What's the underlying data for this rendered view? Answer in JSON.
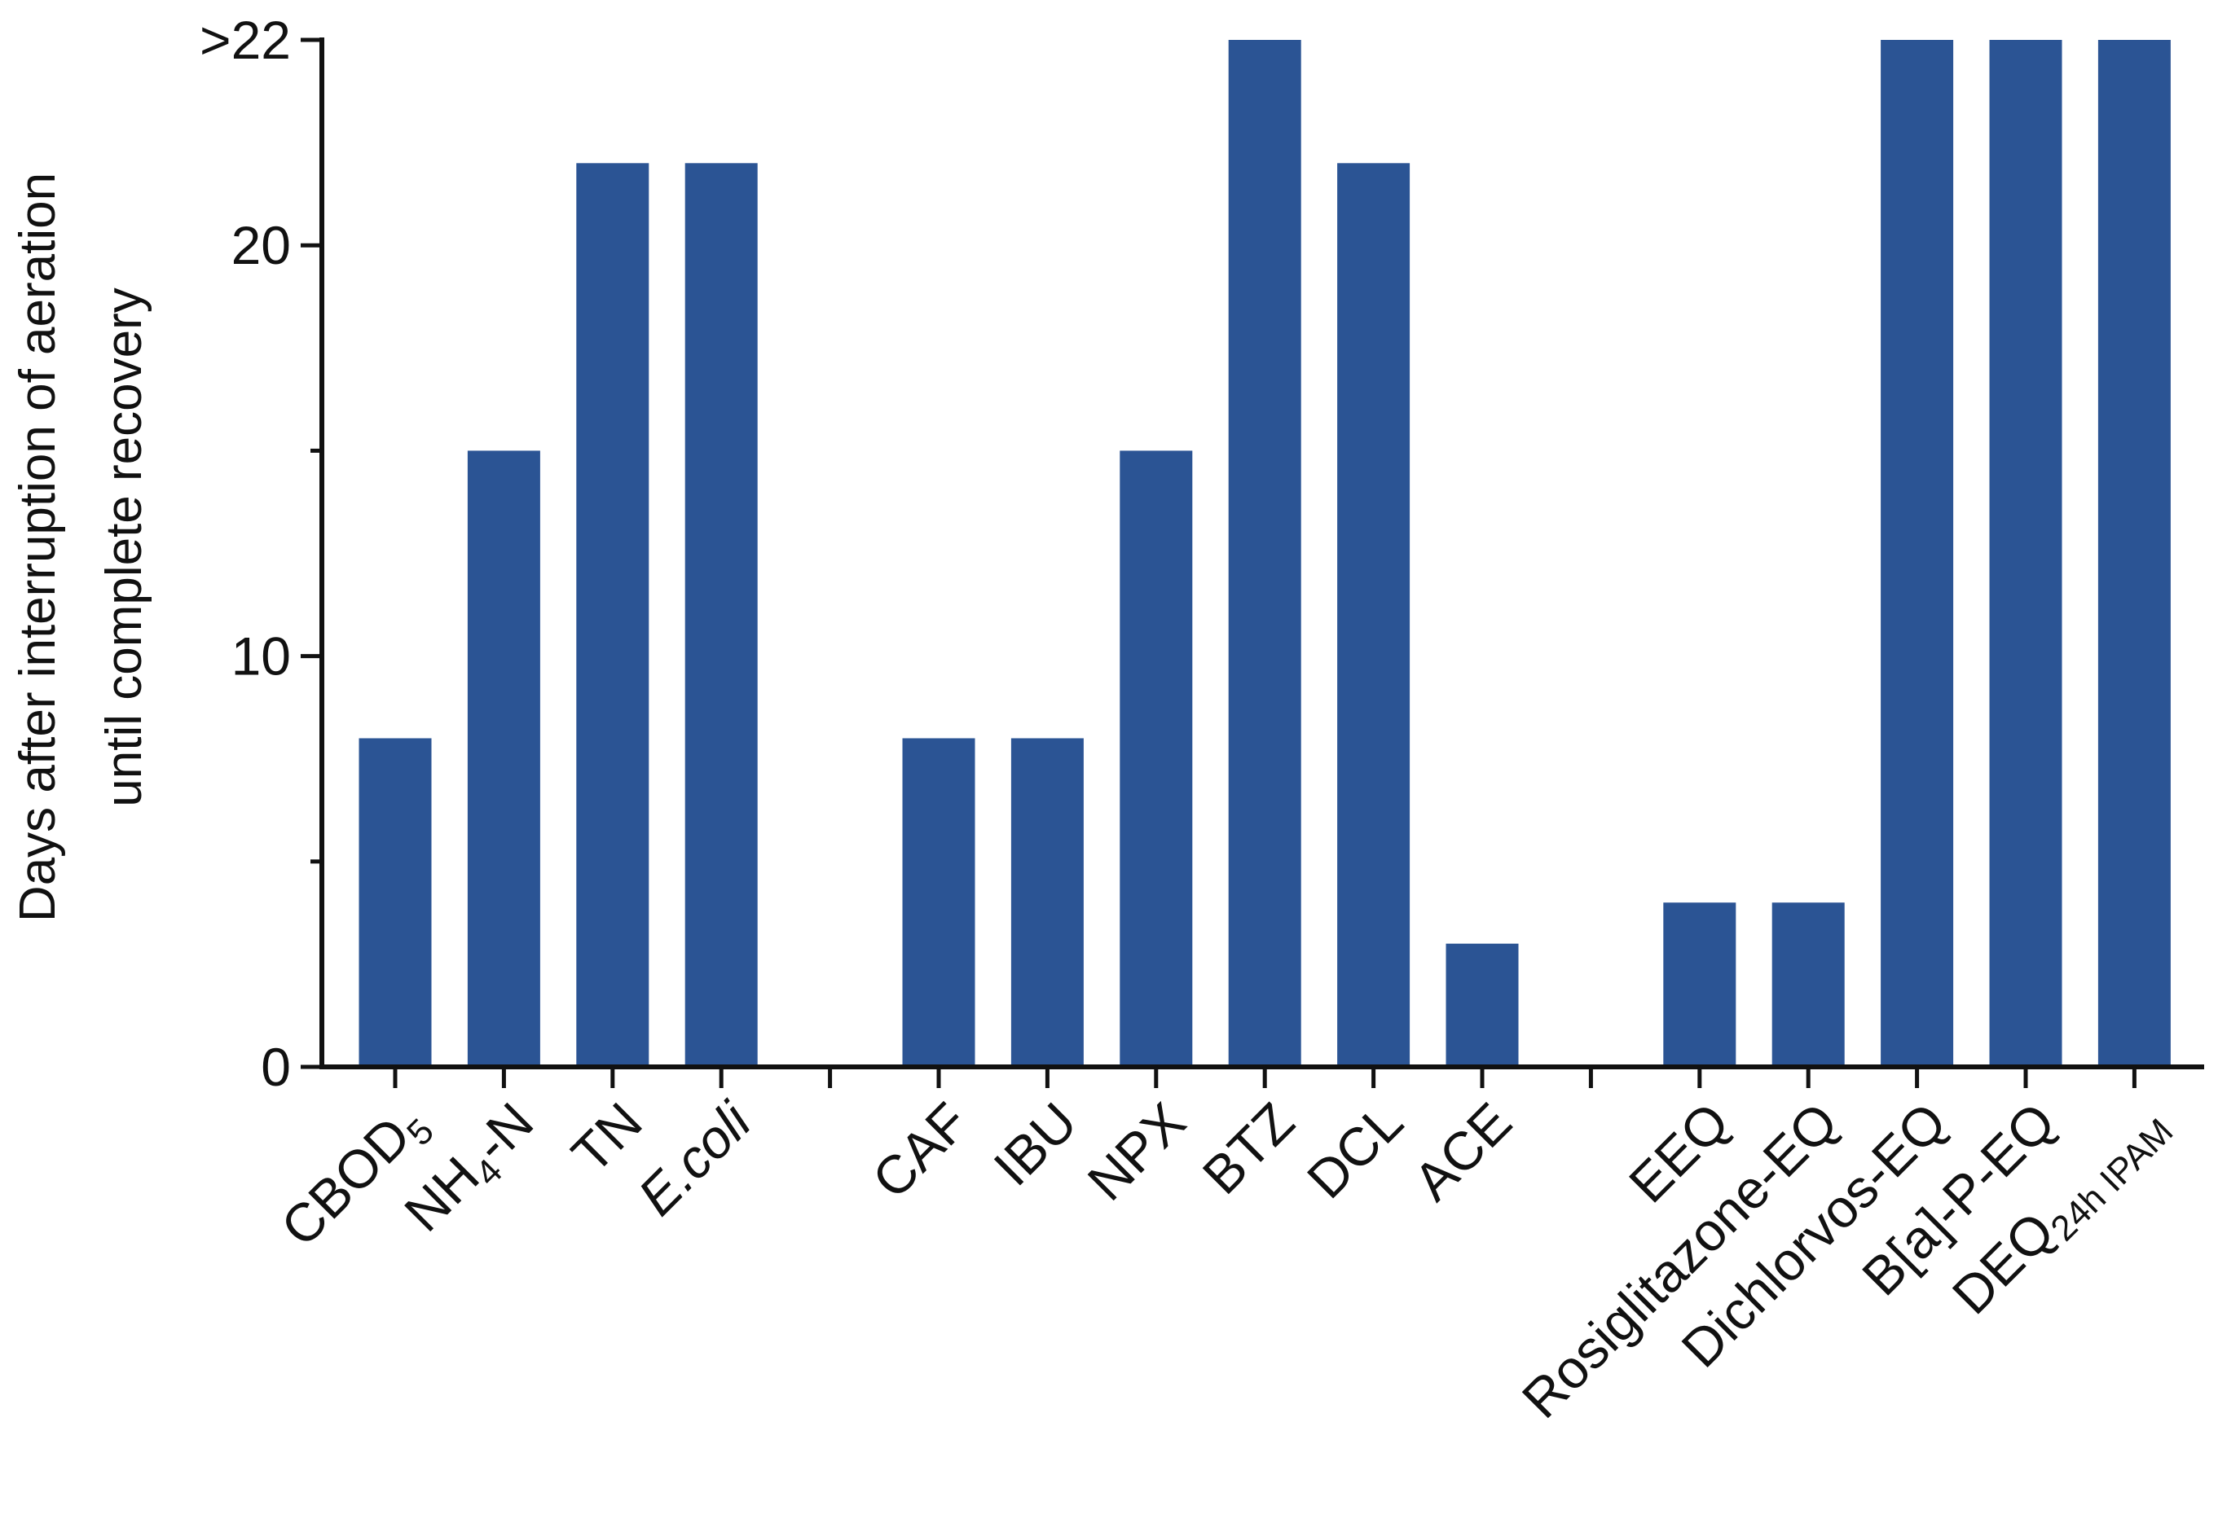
{
  "chart_data": {
    "type": "bar",
    "ylabel_lines": [
      "Days after interruption of aeration",
      "until complete recovery"
    ],
    "ylim": [
      0,
      25
    ],
    "yticks": [
      {
        "value": 0,
        "label": "0"
      },
      {
        "value": 10,
        "label": "10"
      },
      {
        "value": 20,
        "label": "20"
      },
      {
        "value": 25,
        "label": ">22"
      }
    ],
    "minor_yticks": [
      5,
      15
    ],
    "bar_color": "#2b5494",
    "categories": [
      {
        "label": "CBOD",
        "sub": "5",
        "tail": "",
        "italic": false,
        "value": 8
      },
      {
        "label": "NH",
        "sub": "4",
        "tail": "-N",
        "italic": false,
        "value": 15
      },
      {
        "label": "TN",
        "sub": "",
        "tail": "",
        "italic": false,
        "value": 22
      },
      {
        "label": "E.coli",
        "sub": "",
        "tail": "",
        "italic": true,
        "value": 22
      },
      {
        "label": "",
        "sub": "",
        "tail": "",
        "italic": false,
        "value": null
      },
      {
        "label": "CAF",
        "sub": "",
        "tail": "",
        "italic": false,
        "value": 8
      },
      {
        "label": "IBU",
        "sub": "",
        "tail": "",
        "italic": false,
        "value": 8
      },
      {
        "label": "NPX",
        "sub": "",
        "tail": "",
        "italic": false,
        "value": 15
      },
      {
        "label": "BTZ",
        "sub": "",
        "tail": "",
        "italic": false,
        "value": 25
      },
      {
        "label": "DCL",
        "sub": "",
        "tail": "",
        "italic": false,
        "value": 22
      },
      {
        "label": "ACE",
        "sub": "",
        "tail": "",
        "italic": false,
        "value": 3
      },
      {
        "label": "",
        "sub": "",
        "tail": "",
        "italic": false,
        "value": null
      },
      {
        "label": "EEQ",
        "sub": "",
        "tail": "",
        "italic": false,
        "value": 4
      },
      {
        "label": "Rosiglitazone-EQ",
        "sub": "",
        "tail": "",
        "italic": false,
        "value": 4
      },
      {
        "label": "Dichlorvos-EQ",
        "sub": "",
        "tail": "",
        "italic": false,
        "value": 25
      },
      {
        "label": "B[a]-P-EQ",
        "sub": "",
        "tail": "",
        "italic": false,
        "value": 25
      },
      {
        "label": "DEQ",
        "sub": "24h IPAM",
        "tail": "",
        "italic": false,
        "value": 25
      }
    ]
  }
}
